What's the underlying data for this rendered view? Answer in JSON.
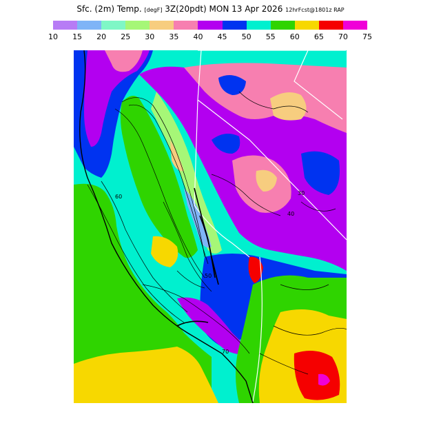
{
  "title": {
    "part1": "Sfc. (2m) Temp.",
    "units": "[degF]",
    "part2": "3Z(20pdt) MON 13 Apr 2026",
    "forecast": "12hrFcst@1801z RAP"
  },
  "legend": {
    "labels": [
      "10",
      "15",
      "20",
      "25",
      "30",
      "35",
      "40",
      "45",
      "50",
      "55",
      "60",
      "65",
      "70",
      "75"
    ],
    "colors": [
      "#b77cf5",
      "#7fb4f7",
      "#7ff7c6",
      "#a6f777",
      "#f7cd7f",
      "#f77fb0",
      "#b300f0",
      "#0033f0",
      "#00f0cf",
      "#2fd400",
      "#f7d800",
      "#f50000",
      "#f000d8"
    ]
  },
  "map": {
    "type": "temperature-contour-map",
    "region": "California / Nevada",
    "contour_labels": [
      "70",
      "60",
      "50",
      "40",
      "30"
    ]
  }
}
